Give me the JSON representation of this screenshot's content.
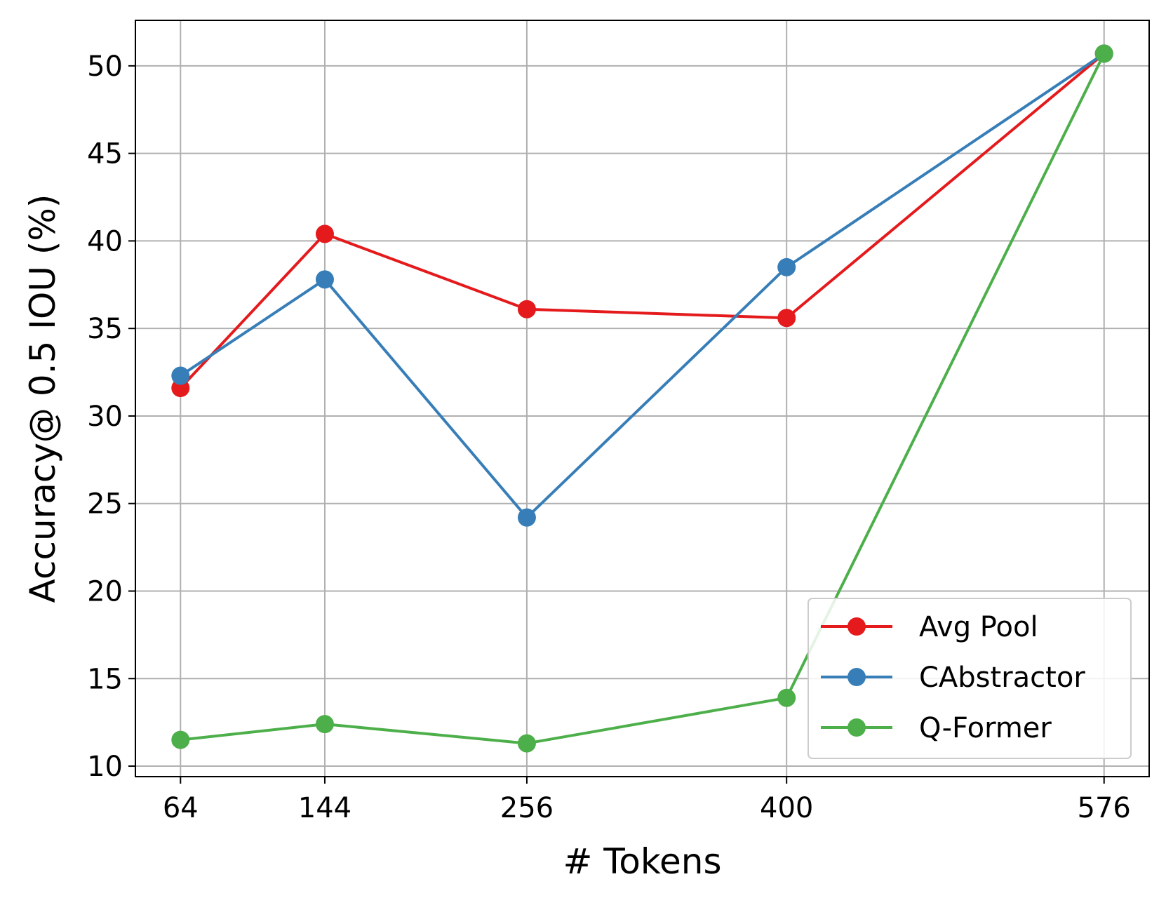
{
  "chart_data": {
    "type": "line",
    "title": "",
    "xlabel": "# Tokens",
    "ylabel": "Accuracy@ 0.5 IOU (%)",
    "x": [
      64,
      144,
      256,
      400,
      576
    ],
    "x_tick_labels": [
      "64",
      "144",
      "256",
      "400",
      "576"
    ],
    "y_ticks": [
      10,
      15,
      20,
      25,
      30,
      35,
      40,
      45,
      50
    ],
    "y_tick_labels": [
      "10",
      "15",
      "20",
      "25",
      "30",
      "35",
      "40",
      "45",
      "50"
    ],
    "xlim": [
      39,
      601
    ],
    "ylim": [
      9.4,
      52.6
    ],
    "grid": true,
    "legend_position": "lower-right",
    "series": [
      {
        "name": "Avg Pool",
        "color": "#e41a1c",
        "values": [
          31.6,
          40.4,
          36.1,
          35.6,
          50.7
        ]
      },
      {
        "name": "CAbstractor",
        "color": "#377eb8",
        "values": [
          32.3,
          37.8,
          24.2,
          38.5,
          50.7
        ]
      },
      {
        "name": "Q-Former",
        "color": "#4daf4a",
        "values": [
          11.5,
          12.4,
          11.3,
          13.9,
          50.7
        ]
      }
    ]
  }
}
